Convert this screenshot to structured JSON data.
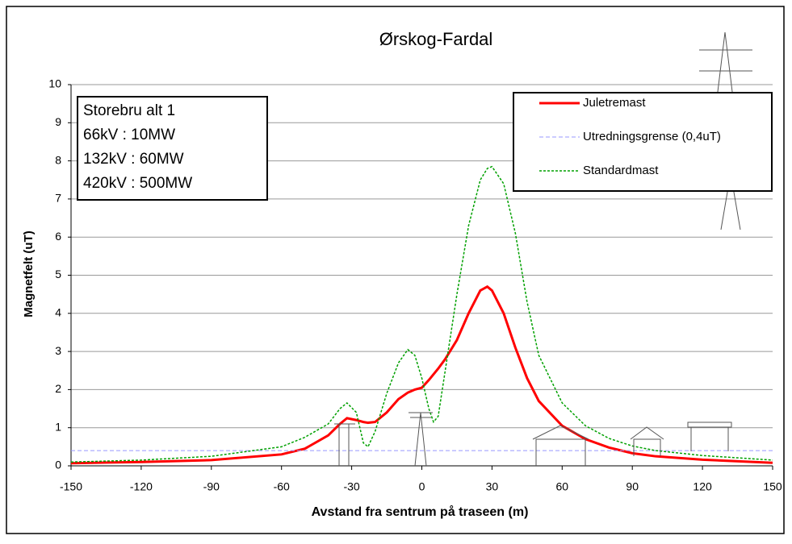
{
  "chart_data": {
    "type": "line",
    "title": "Ørskog-Fardal",
    "x_label": "Avstand fra sentrum på traseen (m)",
    "y_label": "Magnetfelt (uT)",
    "annotations": [
      "Storebru alt 1",
      "66kV : 10MW",
      "132kV : 60MW",
      "420kV : 500MW"
    ],
    "x": [
      -150,
      -120,
      -90,
      -60,
      -50,
      -40,
      -35,
      -32,
      -28,
      -25,
      -23,
      -20,
      -15,
      -10,
      -6,
      -3,
      0,
      3,
      5,
      7,
      10,
      15,
      20,
      25,
      28,
      30,
      35,
      40,
      45,
      50,
      60,
      70,
      80,
      90,
      100,
      120,
      150
    ],
    "series": [
      {
        "name": "Juletremast",
        "color": "#ff0000",
        "style": "solid",
        "values": [
          0.07,
          0.1,
          0.15,
          0.3,
          0.45,
          0.8,
          1.1,
          1.25,
          1.2,
          1.15,
          1.13,
          1.15,
          1.4,
          1.75,
          1.92,
          2.0,
          2.05,
          2.25,
          2.4,
          2.55,
          2.8,
          3.3,
          4.0,
          4.6,
          4.7,
          4.6,
          4.0,
          3.1,
          2.3,
          1.7,
          1.05,
          0.7,
          0.48,
          0.33,
          0.25,
          0.16,
          0.08
        ]
      },
      {
        "name": "Utredningsgrense (0,4uT)",
        "color": "#9999ff",
        "style": "dashed",
        "values": [
          0.4,
          0.4,
          0.4,
          0.4,
          0.4,
          0.4,
          0.4,
          0.4,
          0.4,
          0.4,
          0.4,
          0.4,
          0.4,
          0.4,
          0.4,
          0.4,
          0.4,
          0.4,
          0.4,
          0.4,
          0.4,
          0.4,
          0.4,
          0.4,
          0.4,
          0.4,
          0.4,
          0.4,
          0.4,
          0.4,
          0.4,
          0.4,
          0.4,
          0.4,
          0.4,
          0.4,
          0.4
        ]
      },
      {
        "name": "Standardmast",
        "color": "#00a000",
        "style": "dotted",
        "values": [
          0.1,
          0.15,
          0.25,
          0.5,
          0.75,
          1.1,
          1.5,
          1.65,
          1.4,
          0.6,
          0.5,
          0.9,
          1.9,
          2.7,
          3.05,
          2.9,
          2.3,
          1.5,
          1.15,
          1.3,
          2.5,
          4.5,
          6.3,
          7.5,
          7.8,
          7.85,
          7.4,
          6.1,
          4.3,
          2.9,
          1.65,
          1.05,
          0.72,
          0.52,
          0.4,
          0.27,
          0.15
        ]
      }
    ],
    "xlim": [
      -150,
      150
    ],
    "xticks": [
      -150,
      -120,
      -90,
      -60,
      -30,
      0,
      30,
      60,
      90,
      120,
      150
    ],
    "ylim": [
      0,
      10
    ],
    "yticks": [
      0,
      1,
      2,
      3,
      4,
      5,
      6,
      7,
      8,
      9,
      10
    ],
    "grid": true
  }
}
